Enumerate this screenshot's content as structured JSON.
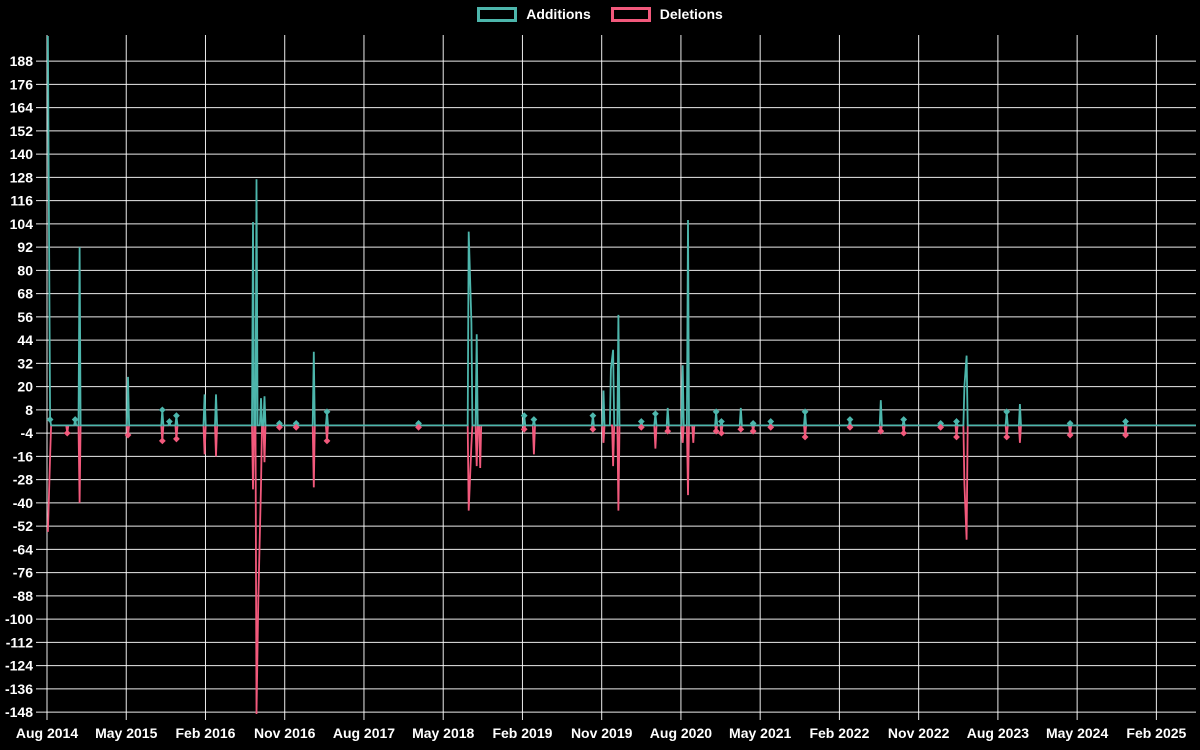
{
  "legend": {
    "additions_label": "Additions",
    "deletions_label": "Deletions"
  },
  "colors": {
    "background": "#000000",
    "grid": "#ffffff",
    "text": "#ffffff",
    "additions": "#4db6ac",
    "deletions": "#f2597c"
  },
  "chart_data": {
    "type": "line",
    "title": "",
    "legend_position": "top-center",
    "grid": "on",
    "x_unit": "months_since_first_tick",
    "x_tick_interval_months": 9,
    "x_tick_labels": [
      "Aug 2014",
      "May 2015",
      "Feb 2016",
      "Nov 2016",
      "Aug 2017",
      "May 2018",
      "Feb 2019",
      "Nov 2019",
      "Aug 2020",
      "May 2021",
      "Feb 2022",
      "Nov 2022",
      "Aug 2023",
      "May 2024",
      "Feb 2025"
    ],
    "y_ticks": [
      188,
      176,
      164,
      152,
      140,
      128,
      116,
      104,
      92,
      80,
      68,
      56,
      44,
      32,
      20,
      8,
      -4,
      -16,
      -28,
      -40,
      -52,
      -64,
      -76,
      -88,
      -100,
      -112,
      -124,
      -136,
      -148
    ],
    "ylim": [
      -149.5,
      201.5
    ],
    "xlim": [
      0,
      130.5
    ],
    "marker": "diamond",
    "series": [
      {
        "name": "Additions",
        "color": "#4db6ac",
        "points": [
          [
            0.1,
            201
          ],
          [
            0.35,
            3
          ],
          [
            3.2,
            3
          ],
          [
            3.7,
            92
          ],
          [
            9.2,
            25
          ],
          [
            13.1,
            8
          ],
          [
            13.9,
            2
          ],
          [
            14.7,
            5
          ],
          [
            17.9,
            16
          ],
          [
            19.2,
            16
          ],
          [
            23.4,
            105
          ],
          [
            23.8,
            127
          ],
          [
            24.3,
            14
          ],
          [
            24.7,
            15
          ],
          [
            26.4,
            1
          ],
          [
            28.3,
            1
          ],
          [
            30.3,
            38
          ],
          [
            31.8,
            7
          ],
          [
            42.2,
            1
          ],
          [
            47.9,
            100
          ],
          [
            48.2,
            53
          ],
          [
            48.8,
            47
          ],
          [
            54.2,
            5
          ],
          [
            55.3,
            3
          ],
          [
            62.0,
            5
          ],
          [
            63.2,
            18
          ],
          [
            64.05,
            29
          ],
          [
            64.3,
            39
          ],
          [
            64.9,
            57
          ],
          [
            67.5,
            2
          ],
          [
            69.1,
            6
          ],
          [
            70.5,
            9
          ],
          [
            72.2,
            31
          ],
          [
            72.8,
            106
          ],
          [
            76.0,
            7
          ],
          [
            76.6,
            2
          ],
          [
            78.8,
            9
          ],
          [
            80.2,
            1
          ],
          [
            82.2,
            2
          ],
          [
            86.1,
            7
          ],
          [
            91.2,
            3
          ],
          [
            94.7,
            13
          ],
          [
            97.3,
            3
          ],
          [
            101.5,
            1
          ],
          [
            103.3,
            2
          ],
          [
            104.2,
            20
          ],
          [
            104.45,
            36
          ],
          [
            109.0,
            7
          ],
          [
            110.5,
            11
          ],
          [
            116.2,
            1
          ],
          [
            122.5,
            2
          ]
        ]
      },
      {
        "name": "Deletions",
        "color": "#f2597c",
        "points": [
          [
            0.1,
            -55
          ],
          [
            0.35,
            -16
          ],
          [
            2.3,
            -4
          ],
          [
            3.7,
            -40
          ],
          [
            9.2,
            -5
          ],
          [
            13.1,
            -8
          ],
          [
            14.7,
            -7
          ],
          [
            17.9,
            -15
          ],
          [
            19.2,
            -16
          ],
          [
            23.4,
            -33
          ],
          [
            23.8,
            -149
          ],
          [
            24.0,
            -90
          ],
          [
            24.3,
            -31
          ],
          [
            24.7,
            -19
          ],
          [
            26.4,
            -1
          ],
          [
            28.3,
            -1
          ],
          [
            30.3,
            -32
          ],
          [
            31.8,
            -8
          ],
          [
            42.2,
            -1
          ],
          [
            47.9,
            -44
          ],
          [
            48.2,
            -10
          ],
          [
            48.8,
            -21
          ],
          [
            49.2,
            -22
          ],
          [
            54.2,
            -2
          ],
          [
            55.3,
            -15
          ],
          [
            62.0,
            -2
          ],
          [
            63.2,
            -9
          ],
          [
            64.3,
            -21
          ],
          [
            64.9,
            -44
          ],
          [
            67.5,
            -1
          ],
          [
            69.1,
            -12
          ],
          [
            70.5,
            -3
          ],
          [
            72.2,
            -9
          ],
          [
            72.8,
            -36
          ],
          [
            73.4,
            -9
          ],
          [
            76.0,
            -3
          ],
          [
            76.6,
            -4
          ],
          [
            78.8,
            -2
          ],
          [
            80.2,
            -3
          ],
          [
            82.2,
            -1
          ],
          [
            86.1,
            -6
          ],
          [
            91.2,
            -1
          ],
          [
            94.7,
            -3
          ],
          [
            97.3,
            -4
          ],
          [
            101.5,
            -1
          ],
          [
            103.3,
            -6
          ],
          [
            104.2,
            -30
          ],
          [
            104.45,
            -59
          ],
          [
            109.0,
            -6
          ],
          [
            110.5,
            -9
          ],
          [
            116.2,
            -5
          ],
          [
            122.5,
            -5
          ]
        ]
      }
    ]
  }
}
